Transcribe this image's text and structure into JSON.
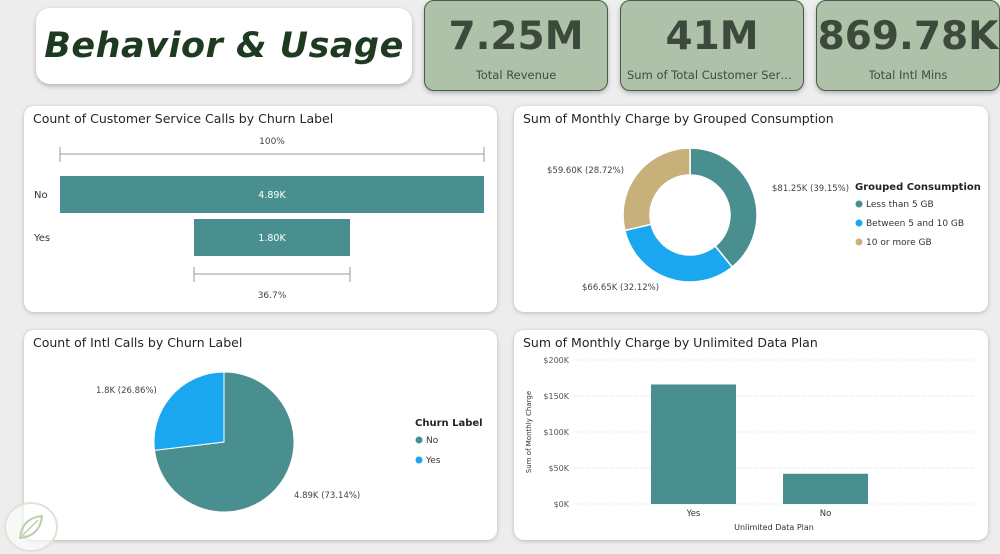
{
  "header": {
    "title": "Behavior & Usage"
  },
  "kpis": [
    {
      "value": "7.25M",
      "label": "Total Revenue"
    },
    {
      "value": "41M",
      "label": "Sum of Total Customer Servi..."
    },
    {
      "value": "869.78K",
      "label": "Total Intl Mins"
    }
  ],
  "funnel": {
    "title": "Count of Customer Service Calls by Churn Label",
    "top_pct": "100%",
    "bottom_pct": "36.7%",
    "rows": [
      {
        "label": "No",
        "value_label": "4.89K",
        "value": 4890
      },
      {
        "label": "Yes",
        "value_label": "1.80K",
        "value": 1800
      }
    ],
    "color": "#4a8f8f"
  },
  "donut": {
    "title": "Sum of Monthly Charge by Grouped Consumption",
    "legend_title": "Grouped Consumption",
    "slices": [
      {
        "name": "Less than 5 GB",
        "value": 81250,
        "label": "$81.25K (39.15%)",
        "color": "#4a8f8f"
      },
      {
        "name": "Between 5 and 10 GB",
        "value": 66650,
        "label": "$66.65K (32.12%)",
        "color": "#1aa7f0"
      },
      {
        "name": "10 or more GB",
        "value": 59600,
        "label": "$59.60K (28.72%)",
        "color": "#c7b07a"
      }
    ]
  },
  "pie": {
    "title": "Count of Intl Calls by Churn Label",
    "legend_title": "Churn Label",
    "slices": [
      {
        "name": "No",
        "value": 4890,
        "label": "4.89K (73.14%)",
        "color": "#4a8f8f"
      },
      {
        "name": "Yes",
        "value": 1800,
        "label": "1.8K (26.86%)",
        "color": "#1aa7f0"
      }
    ]
  },
  "chart_data": {
    "type": "bar",
    "title": "Sum of Monthly Charge by Unlimited Data Plan",
    "categories": [
      "Yes",
      "No"
    ],
    "values": [
      166000,
      42000
    ],
    "xlabel": "Unlimited Data Plan",
    "ylabel": "Sum of Monthly Charge",
    "ylim": [
      0,
      200000
    ],
    "yticks": [
      "$0K",
      "$50K",
      "$100K",
      "$150K",
      "$200K"
    ],
    "color": "#4a8f8f",
    "grid": true
  }
}
